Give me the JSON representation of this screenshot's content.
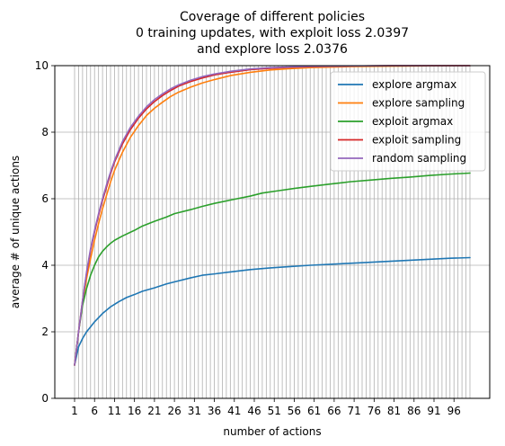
{
  "chart_data": {
    "type": "line",
    "title_lines": [
      "Coverage of different policies",
      "0 training updates, with exploit loss 2.0397",
      "and explore loss 2.0376"
    ],
    "xlabel": "number of actions",
    "ylabel": "average # of unique actions",
    "xlim": [
      -3.95,
      104.95
    ],
    "ylim": [
      0,
      10
    ],
    "x_ticks": [
      1,
      6,
      11,
      16,
      21,
      26,
      31,
      36,
      41,
      46,
      51,
      56,
      61,
      66,
      71,
      76,
      81,
      86,
      91,
      96
    ],
    "x_tick_labels": [
      "1",
      "6",
      "11",
      "16",
      "21",
      "26",
      "31",
      "36",
      "41",
      "46",
      "51",
      "56",
      "61",
      "66",
      "71",
      "76",
      "81",
      "86",
      "91",
      "96"
    ],
    "y_ticks": [
      0,
      2,
      4,
      6,
      8,
      10
    ],
    "y_tick_labels": [
      "0",
      "2",
      "4",
      "6",
      "8",
      "10"
    ],
    "grid": "vertical line at every integer x from 1 to 100; horizontal lines at y ticks",
    "legend_position": "upper right",
    "series": [
      {
        "name": "explore argmax",
        "color": "#1f77b4",
        "points": [
          [
            1,
            1.0
          ],
          [
            2,
            1.55
          ],
          [
            3,
            1.8
          ],
          [
            4,
            2.0
          ],
          [
            5,
            2.15
          ],
          [
            6,
            2.3
          ],
          [
            8,
            2.55
          ],
          [
            10,
            2.75
          ],
          [
            12,
            2.9
          ],
          [
            14,
            3.03
          ],
          [
            16,
            3.12
          ],
          [
            18,
            3.22
          ],
          [
            21,
            3.32
          ],
          [
            24,
            3.44
          ],
          [
            26,
            3.5
          ],
          [
            30,
            3.62
          ],
          [
            33,
            3.7
          ],
          [
            36,
            3.74
          ],
          [
            40,
            3.8
          ],
          [
            45,
            3.87
          ],
          [
            50,
            3.92
          ],
          [
            55,
            3.96
          ],
          [
            60,
            4.0
          ],
          [
            65,
            4.03
          ],
          [
            70,
            4.06
          ],
          [
            75,
            4.09
          ],
          [
            80,
            4.12
          ],
          [
            85,
            4.15
          ],
          [
            90,
            4.18
          ],
          [
            95,
            4.21
          ],
          [
            100,
            4.23
          ]
        ]
      },
      {
        "name": "explore sampling",
        "color": "#ff7f0e",
        "points": [
          [
            1,
            1.0
          ],
          [
            2,
            2.0
          ],
          [
            3,
            2.85
          ],
          [
            4,
            3.6
          ],
          [
            5,
            4.2
          ],
          [
            6,
            4.75
          ],
          [
            7,
            5.25
          ],
          [
            8,
            5.7
          ],
          [
            9,
            6.1
          ],
          [
            10,
            6.5
          ],
          [
            11,
            6.85
          ],
          [
            13,
            7.4
          ],
          [
            15,
            7.85
          ],
          [
            17,
            8.2
          ],
          [
            19,
            8.5
          ],
          [
            21,
            8.72
          ],
          [
            23,
            8.9
          ],
          [
            25,
            9.07
          ],
          [
            27,
            9.2
          ],
          [
            30,
            9.35
          ],
          [
            33,
            9.48
          ],
          [
            36,
            9.58
          ],
          [
            40,
            9.7
          ],
          [
            45,
            9.8
          ],
          [
            50,
            9.87
          ],
          [
            55,
            9.91
          ],
          [
            60,
            9.94
          ],
          [
            70,
            9.97
          ],
          [
            80,
            9.985
          ],
          [
            90,
            9.995
          ],
          [
            100,
            10.0
          ]
        ]
      },
      {
        "name": "exploit argmax",
        "color": "#2ca02c",
        "points": [
          [
            1,
            1.0
          ],
          [
            2,
            2.0
          ],
          [
            3,
            2.8
          ],
          [
            4,
            3.3
          ],
          [
            5,
            3.7
          ],
          [
            6,
            4.0
          ],
          [
            7,
            4.25
          ],
          [
            8,
            4.42
          ],
          [
            9,
            4.55
          ],
          [
            10,
            4.66
          ],
          [
            11,
            4.75
          ],
          [
            13,
            4.88
          ],
          [
            16,
            5.05
          ],
          [
            18,
            5.18
          ],
          [
            21,
            5.32
          ],
          [
            24,
            5.45
          ],
          [
            26,
            5.55
          ],
          [
            30,
            5.67
          ],
          [
            33,
            5.77
          ],
          [
            36,
            5.86
          ],
          [
            40,
            5.96
          ],
          [
            45,
            6.08
          ],
          [
            48,
            6.17
          ],
          [
            52,
            6.24
          ],
          [
            56,
            6.31
          ],
          [
            60,
            6.37
          ],
          [
            65,
            6.44
          ],
          [
            70,
            6.51
          ],
          [
            75,
            6.56
          ],
          [
            80,
            6.61
          ],
          [
            85,
            6.65
          ],
          [
            90,
            6.7
          ],
          [
            95,
            6.74
          ],
          [
            100,
            6.77
          ]
        ]
      },
      {
        "name": "exploit sampling",
        "color": "#d62728",
        "points": [
          [
            1,
            1.0
          ],
          [
            2,
            2.0
          ],
          [
            3,
            2.95
          ],
          [
            4,
            3.75
          ],
          [
            5,
            4.45
          ],
          [
            6,
            5.0
          ],
          [
            7,
            5.5
          ],
          [
            8,
            5.95
          ],
          [
            9,
            6.35
          ],
          [
            10,
            6.75
          ],
          [
            11,
            7.1
          ],
          [
            13,
            7.65
          ],
          [
            15,
            8.08
          ],
          [
            17,
            8.42
          ],
          [
            19,
            8.7
          ],
          [
            21,
            8.92
          ],
          [
            23,
            9.1
          ],
          [
            25,
            9.25
          ],
          [
            27,
            9.38
          ],
          [
            30,
            9.52
          ],
          [
            33,
            9.63
          ],
          [
            36,
            9.72
          ],
          [
            40,
            9.8
          ],
          [
            45,
            9.88
          ],
          [
            50,
            9.92
          ],
          [
            55,
            9.95
          ],
          [
            60,
            9.97
          ],
          [
            70,
            9.99
          ],
          [
            80,
            10.0
          ],
          [
            90,
            10.0
          ],
          [
            100,
            10.0
          ]
        ]
      },
      {
        "name": "random sampling",
        "color": "#9467bd",
        "points": [
          [
            1,
            1.0
          ],
          [
            2,
            2.0
          ],
          [
            3,
            2.95
          ],
          [
            4,
            3.8
          ],
          [
            5,
            4.5
          ],
          [
            6,
            5.05
          ],
          [
            7,
            5.55
          ],
          [
            8,
            6.0
          ],
          [
            9,
            6.42
          ],
          [
            10,
            6.8
          ],
          [
            11,
            7.15
          ],
          [
            13,
            7.72
          ],
          [
            15,
            8.15
          ],
          [
            17,
            8.48
          ],
          [
            19,
            8.76
          ],
          [
            21,
            8.98
          ],
          [
            23,
            9.15
          ],
          [
            25,
            9.3
          ],
          [
            27,
            9.42
          ],
          [
            30,
            9.56
          ],
          [
            33,
            9.67
          ],
          [
            36,
            9.75
          ],
          [
            40,
            9.83
          ],
          [
            45,
            9.9
          ],
          [
            50,
            9.94
          ],
          [
            55,
            9.96
          ],
          [
            60,
            9.98
          ],
          [
            70,
            9.99
          ],
          [
            80,
            10.0
          ],
          [
            90,
            10.0
          ],
          [
            100,
            10.0
          ]
        ]
      }
    ]
  }
}
